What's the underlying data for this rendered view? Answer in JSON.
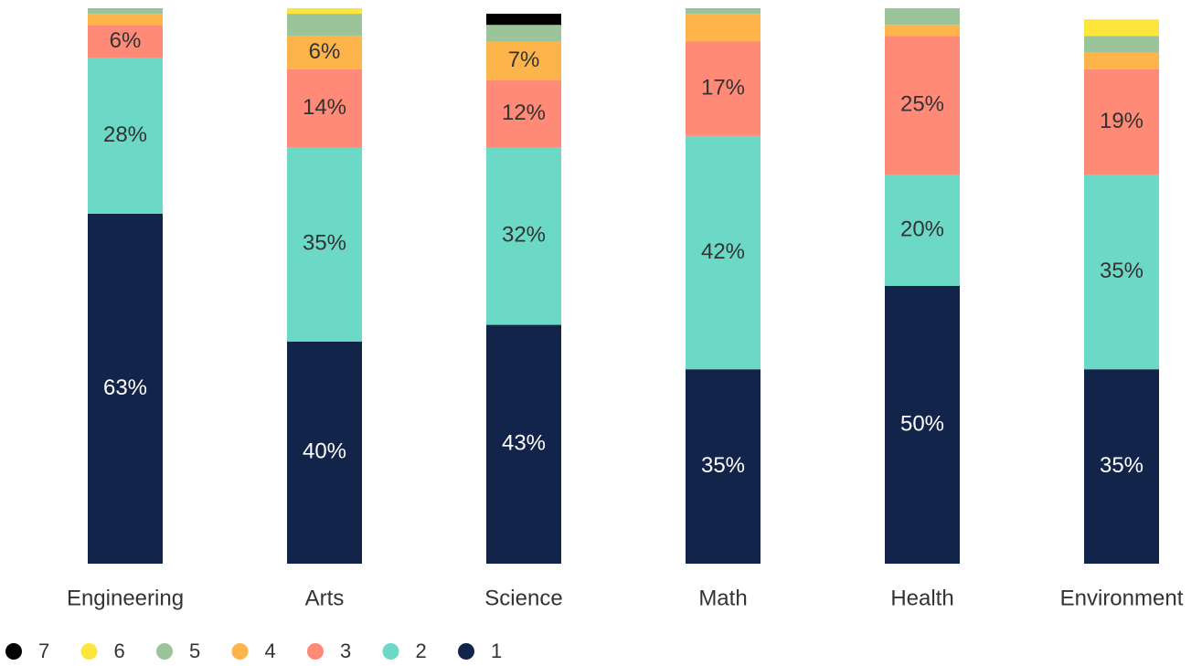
{
  "chart_data": {
    "type": "stacked_bar",
    "categories": [
      "Engineering",
      "Arts",
      "Science",
      "Math",
      "Health",
      "Environment"
    ],
    "ylim": [
      0,
      100
    ],
    "series": [
      {
        "name": "1",
        "color": "#13244a",
        "values": [
          63,
          40,
          43,
          35,
          50,
          35
        ],
        "value_labels": [
          "63%",
          "40%",
          "43%",
          "35%",
          "50%",
          "35%"
        ]
      },
      {
        "name": "2",
        "color": "#6cd9c7",
        "values": [
          28,
          35,
          32,
          42,
          20,
          35
        ],
        "value_labels": [
          "28%",
          "35%",
          "32%",
          "42%",
          "20%",
          "35%"
        ]
      },
      {
        "name": "3",
        "color": "#fe8a77",
        "values": [
          6,
          14,
          12,
          17,
          25,
          19
        ],
        "value_labels": [
          "6%",
          "14%",
          "12%",
          "17%",
          "25%",
          "19%"
        ]
      },
      {
        "name": "4",
        "color": "#fdb54b",
        "values": [
          2,
          6,
          7,
          5,
          2,
          3
        ],
        "value_labels": [
          null,
          "6%",
          "7%",
          null,
          null,
          null
        ]
      },
      {
        "name": "5",
        "color": "#9bc49b",
        "values": [
          1,
          4,
          3,
          1,
          3,
          3
        ],
        "value_labels": [
          null,
          null,
          null,
          null,
          null,
          null
        ]
      },
      {
        "name": "6",
        "color": "#fde63b",
        "values": [
          0,
          1,
          0,
          0,
          0,
          3
        ],
        "value_labels": [
          null,
          null,
          null,
          null,
          null,
          null
        ]
      },
      {
        "name": "7",
        "color": "#000000",
        "values": [
          0,
          0,
          2,
          0,
          0,
          0
        ],
        "value_labels": [
          null,
          null,
          null,
          null,
          null,
          null
        ]
      }
    ]
  }
}
